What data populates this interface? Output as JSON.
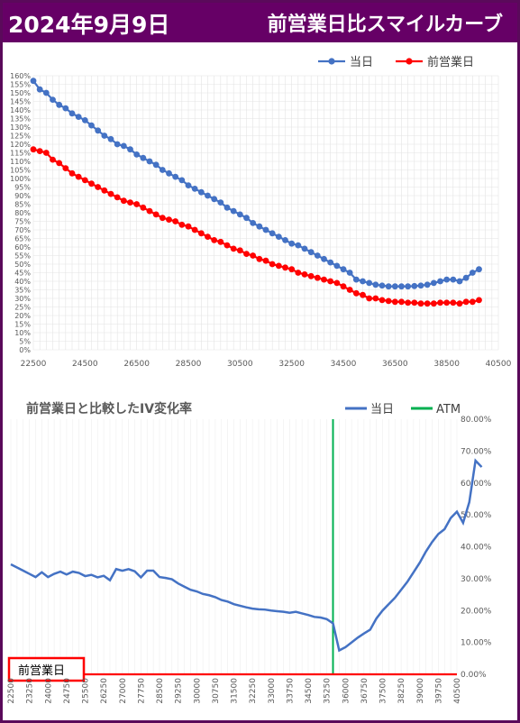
{
  "header": {
    "date": "2024年9月9日",
    "title": "前営業日比スマイルカーブ"
  },
  "colors": {
    "header_bg": "#660066",
    "today": "#4472C4",
    "prev": "#FF0000",
    "atm": "#00B050"
  },
  "chart_data": [
    {
      "type": "line",
      "title": "",
      "legend": [
        "当日",
        "前営業日"
      ],
      "legend_position": "top-right",
      "x_ticks": [
        "22500",
        "24500",
        "26500",
        "28500",
        "30500",
        "32500",
        "34500",
        "36500",
        "38500",
        "40500"
      ],
      "y_ticks": [
        "0%",
        "5%",
        "10%",
        "15%",
        "20%",
        "25%",
        "30%",
        "35%",
        "40%",
        "45%",
        "50%",
        "55%",
        "60%",
        "65%",
        "70%",
        "75%",
        "80%",
        "85%",
        "90%",
        "95%",
        "100%",
        "105%",
        "110%",
        "115%",
        "120%",
        "125%",
        "130%",
        "135%",
        "140%",
        "145%",
        "150%",
        "155%",
        "160%"
      ],
      "ylim": [
        0,
        160
      ],
      "xlim": [
        22500,
        40500
      ],
      "x_step": 250,
      "series": [
        {
          "name": "当日",
          "values": [
            157,
            152,
            150,
            146,
            143,
            141,
            138,
            136,
            134,
            131,
            128,
            125,
            123,
            120,
            119,
            117,
            114,
            112,
            110,
            108,
            105,
            103,
            101,
            99,
            96,
            94,
            92,
            90,
            88,
            86,
            83,
            81,
            79,
            77,
            74,
            72,
            70,
            68,
            66,
            64,
            62,
            61,
            59,
            57,
            55,
            53,
            51,
            49,
            47,
            45,
            41,
            40,
            39,
            38,
            37.5,
            37,
            37,
            37,
            37,
            37.2,
            37.5,
            38,
            39,
            40,
            41,
            41,
            40,
            42,
            45,
            47
          ]
        },
        {
          "name": "前営業日",
          "values": [
            117,
            116,
            115,
            111,
            109,
            106,
            103,
            101,
            99,
            97,
            95,
            93,
            91,
            89,
            87,
            86,
            85,
            83,
            81,
            79,
            77,
            76,
            75,
            73,
            72,
            70,
            68,
            66,
            64,
            63,
            61,
            59,
            58,
            56,
            55,
            53,
            52,
            50,
            49,
            48,
            47,
            45,
            44,
            43,
            42,
            41,
            40,
            39,
            37,
            35,
            33,
            32,
            30,
            30,
            29,
            28.5,
            28,
            28,
            27.5,
            27.5,
            27,
            27,
            27,
            27.5,
            27.5,
            27.5,
            27,
            28,
            28,
            29
          ]
        }
      ]
    },
    {
      "type": "line",
      "title": "前営業日と比較したIV変化率",
      "legend": [
        "当日",
        "ATM"
      ],
      "legend_position": "top-right",
      "annotation": "前営業日",
      "x_ticks": [
        "22500",
        "23250",
        "24000",
        "24750",
        "25500",
        "26250",
        "27000",
        "27750",
        "28500",
        "29250",
        "30000",
        "30750",
        "31500",
        "32250",
        "33000",
        "33750",
        "34500",
        "35250",
        "36000",
        "36750",
        "37500",
        "38250",
        "39000",
        "39750",
        "40500"
      ],
      "y_ticks": [
        "0.00%",
        "10.00%",
        "20.00%",
        "30.00%",
        "40.00%",
        "50.00%",
        "60.00%",
        "70.00%",
        "80.00%"
      ],
      "ylim": [
        0,
        80
      ],
      "xlim": [
        22500,
        40500
      ],
      "x_step": 250,
      "atm_x": 35500,
      "series": [
        {
          "name": "当日",
          "values": [
            34.5,
            33.5,
            32.5,
            31.5,
            30.5,
            32,
            30.5,
            31.5,
            32.2,
            31.3,
            32.2,
            31.8,
            30.8,
            31.2,
            30.4,
            30.9,
            29.5,
            33,
            32.5,
            33,
            32.3,
            30.4,
            32.5,
            32.5,
            30.5,
            30.2,
            29.8,
            28.5,
            27.5,
            26.5,
            26,
            25.2,
            24.8,
            24.2,
            23.3,
            22.8,
            22,
            21.5,
            21,
            20.6,
            20.4,
            20.3,
            20,
            19.8,
            19.6,
            19.3,
            19.6,
            19.1,
            18.6,
            18,
            17.8,
            17.3,
            16,
            7.5,
            8.5,
            10,
            11.5,
            12.8,
            14,
            17.5,
            20,
            22,
            24,
            26.5,
            29,
            32,
            35,
            38.5,
            41.5,
            44,
            45.5,
            49,
            51,
            47.5,
            54,
            67,
            65
          ]
        },
        {
          "name": "前営業日",
          "values": [
            0
          ]
        }
      ]
    }
  ]
}
